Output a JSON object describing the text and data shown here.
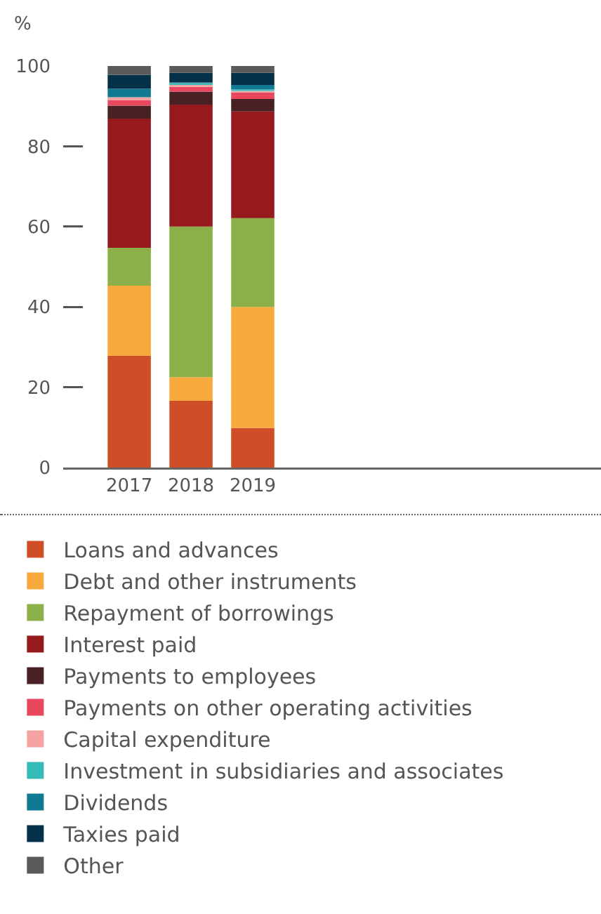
{
  "chart_data": {
    "type": "bar",
    "stacked": true,
    "ylabel": "%",
    "categories": [
      "2017",
      "2018",
      "2019"
    ],
    "series": [
      {
        "name": "Loans and advances",
        "color": "#d04e27",
        "values": [
          27.8,
          16.6,
          9.9
        ]
      },
      {
        "name": "Debt and other instruments",
        "color": "#f7a93c",
        "values": [
          17.5,
          5.9,
          30.1
        ]
      },
      {
        "name": "Repayment of borrowings",
        "color": "#8bb04a",
        "values": [
          9.4,
          37.5,
          22.1
        ]
      },
      {
        "name": "Interest paid",
        "color": "#96191e",
        "values": [
          32.2,
          30.4,
          26.6
        ]
      },
      {
        "name": "Payments to employees",
        "color": "#482125",
        "values": [
          3.2,
          3.2,
          3.1
        ]
      },
      {
        "name": "Payments on other operating activities",
        "color": "#e8475e",
        "values": [
          1.4,
          1.2,
          1.6
        ]
      },
      {
        "name": "Capital expenditure",
        "color": "#f4a3a0",
        "values": [
          0.7,
          0.5,
          0.4
        ]
      },
      {
        "name": "Investment in subsidiaries and associates",
        "color": "#36bcb8",
        "values": [
          0,
          0.4,
          0.4
        ]
      },
      {
        "name": "Dividends",
        "color": "#107a93",
        "values": [
          2.1,
          0.2,
          1.1
        ]
      },
      {
        "name": "Taxies paid",
        "color": "#05304a",
        "values": [
          3.5,
          2.4,
          3.0
        ]
      },
      {
        "name": "Other",
        "color": "#5a5a5a",
        "values": [
          2.2,
          1.7,
          1.7
        ]
      }
    ],
    "ylim": [
      0,
      100
    ],
    "yticks": [
      0,
      20,
      40,
      60,
      80,
      100
    ],
    "grid": false,
    "legend": "bottom"
  }
}
